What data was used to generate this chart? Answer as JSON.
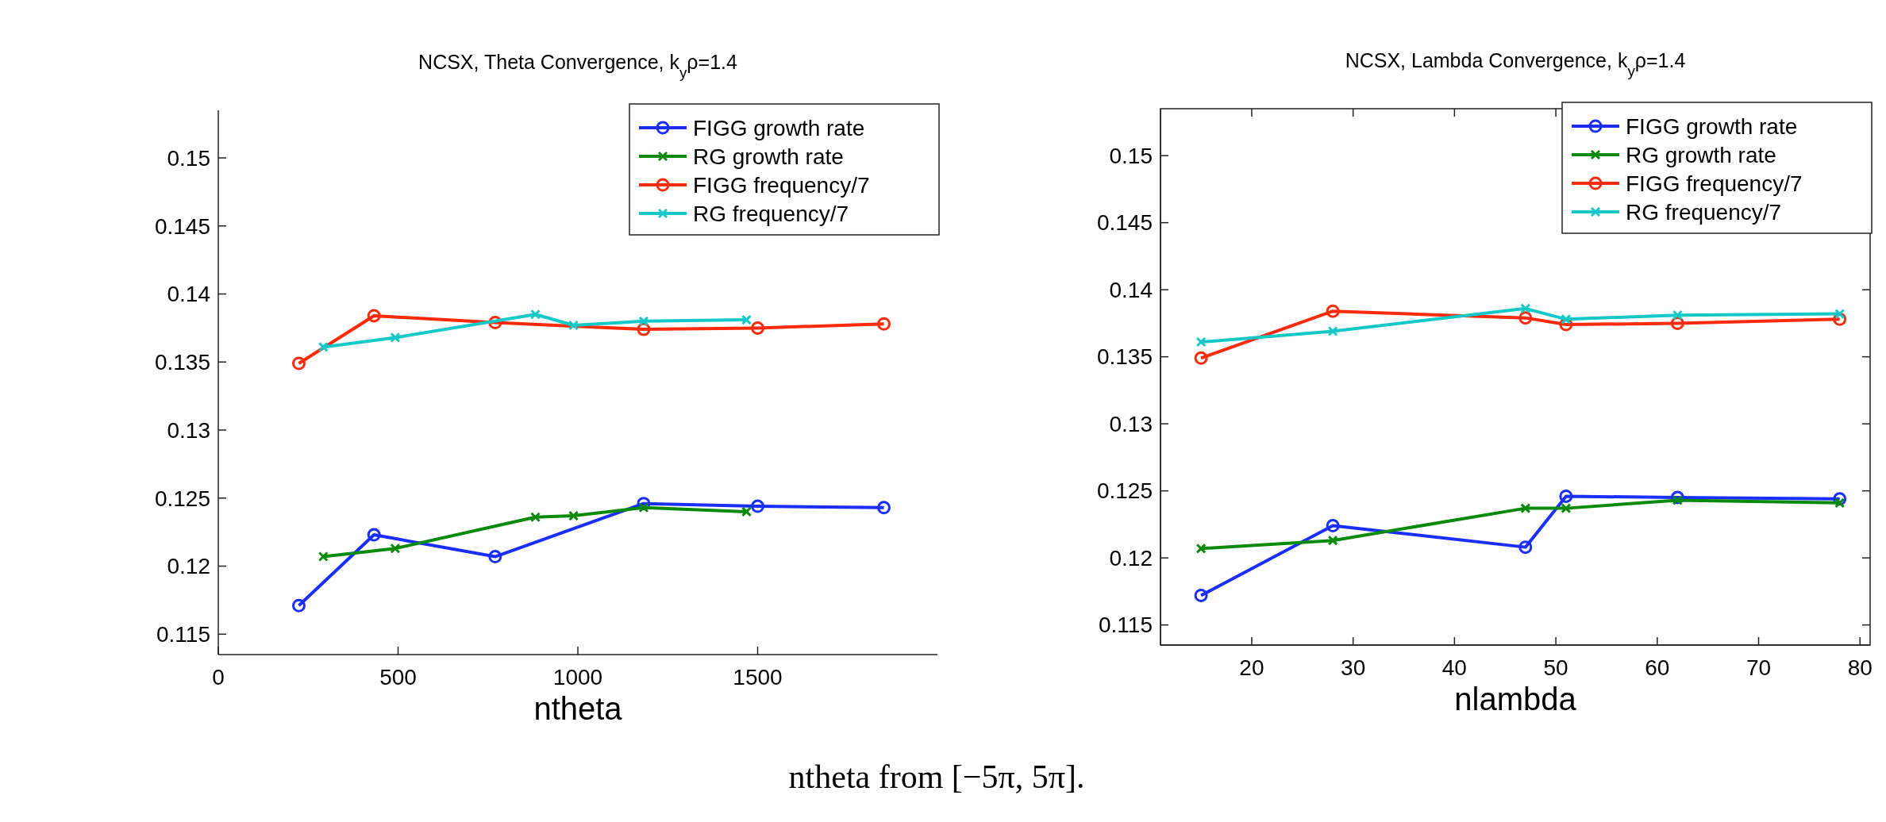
{
  "chart_data": [
    {
      "type": "line",
      "title": "NCSX, Theta Convergence, k$_{y}$ρ=1.4",
      "xlabel": "ntheta",
      "xlim": [
        0,
        2000
      ],
      "xticks": [
        0,
        500,
        1000,
        1500
      ],
      "ylim": [
        0.1135,
        0.1535
      ],
      "yticks": [
        0.115,
        0.12,
        0.125,
        0.13,
        0.135,
        0.14,
        0.145,
        0.15
      ],
      "legend": "top right",
      "grid": false,
      "annotations": [
        "ntheta from [−5π, 5π]."
      ],
      "series": [
        {
          "name": "FIGG growth rate",
          "color": "#1a2eff",
          "marker": "circle",
          "x": [
            224,
            433,
            770,
            1183,
            1500,
            1851
          ],
          "values": [
            0.1171,
            0.1223,
            0.1207,
            0.1246,
            0.1244,
            0.1243
          ]
        },
        {
          "name": "RG growth rate",
          "color": "#0a8a0a",
          "marker": "cross",
          "x": [
            292,
            492,
            882,
            988,
            1183,
            1469
          ],
          "values": [
            0.1207,
            0.1213,
            0.1236,
            0.1237,
            0.1243,
            0.124
          ]
        },
        {
          "name": "FIGG frequency/7",
          "color": "#ff2a0a",
          "marker": "circle",
          "x": [
            224,
            433,
            770,
            1183,
            1500,
            1851
          ],
          "values": [
            0.1349,
            0.1384,
            0.1379,
            0.1374,
            0.1375,
            0.1378
          ]
        },
        {
          "name": "RG frequency/7",
          "color": "#14c8c8",
          "marker": "cross",
          "x": [
            292,
            492,
            882,
            988,
            1183,
            1469
          ],
          "values": [
            0.1361,
            0.1368,
            0.1385,
            0.1377,
            0.138,
            0.1381
          ]
        }
      ]
    },
    {
      "type": "line",
      "title": "NCSX, Lambda Convergence, k$_{y}$ρ=1.4",
      "xlabel": "nlambda",
      "xlim": [
        11,
        81
      ],
      "xticks": [
        20,
        30,
        40,
        50,
        60,
        70,
        80
      ],
      "ylim": [
        0.1135,
        0.1535
      ],
      "yticks": [
        0.115,
        0.12,
        0.125,
        0.13,
        0.135,
        0.14,
        0.145,
        0.15
      ],
      "legend": "top right",
      "grid": false,
      "series": [
        {
          "name": "FIGG growth rate",
          "color": "#1a2eff",
          "marker": "circle",
          "x": [
            15,
            28,
            47,
            51,
            62,
            78
          ],
          "values": [
            0.1172,
            0.1224,
            0.1208,
            0.1246,
            0.1245,
            0.1244
          ]
        },
        {
          "name": "RG growth rate",
          "color": "#0a8a0a",
          "marker": "cross",
          "x": [
            15,
            28,
            47,
            51,
            62,
            78
          ],
          "values": [
            0.1207,
            0.1213,
            0.1237,
            0.1237,
            0.1243,
            0.1241
          ]
        },
        {
          "name": "FIGG frequency/7",
          "color": "#ff2a0a",
          "marker": "circle",
          "x": [
            15,
            28,
            47,
            51,
            62,
            78
          ],
          "values": [
            0.1349,
            0.1384,
            0.1379,
            0.1374,
            0.1375,
            0.1378
          ]
        },
        {
          "name": "RG frequency/7",
          "color": "#14c8c8",
          "marker": "cross",
          "x": [
            15,
            28,
            47,
            51,
            62,
            78
          ],
          "values": [
            0.1361,
            0.1369,
            0.1386,
            0.1378,
            0.1381,
            0.1382
          ]
        }
      ]
    }
  ]
}
